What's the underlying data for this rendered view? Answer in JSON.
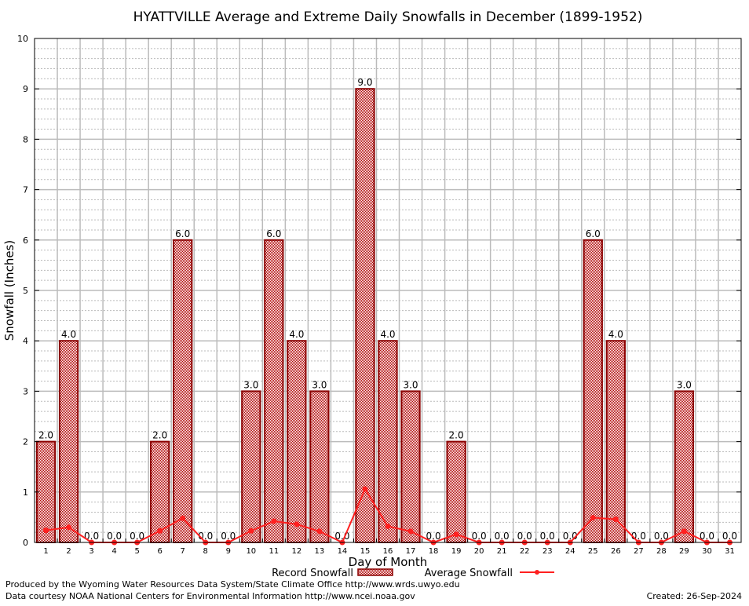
{
  "chart_data": {
    "type": "bar",
    "title": "HYATTVILLE Average and Extreme Daily Snowfalls in December (1899-1952)",
    "xlabel": "Day of Month",
    "ylabel": "Snowfall (Inches)",
    "ylim": [
      0,
      10
    ],
    "yticks": [
      "0",
      "1",
      "2",
      "3",
      "4",
      "5",
      "6",
      "7",
      "8",
      "9",
      "10"
    ],
    "grid": true,
    "legend_placement": "bottom",
    "categories": [
      "1",
      "2",
      "3",
      "4",
      "5",
      "6",
      "7",
      "8",
      "9",
      "10",
      "11",
      "12",
      "13",
      "14",
      "15",
      "16",
      "17",
      "18",
      "19",
      "20",
      "21",
      "22",
      "23",
      "24",
      "25",
      "26",
      "27",
      "28",
      "29",
      "30",
      "31"
    ],
    "series": [
      {
        "name": "Record Snowfall",
        "type": "bar",
        "color": "#cc0000",
        "values": [
          2,
          4,
          0,
          0,
          0,
          2,
          6,
          0,
          0,
          3,
          6,
          4,
          3,
          0,
          9,
          4,
          3,
          0,
          2,
          0,
          0,
          0,
          0,
          0,
          6,
          4,
          0,
          0,
          3,
          0,
          0
        ],
        "labels": [
          "2.0",
          "4.0",
          "0.0",
          "0.0",
          "0.0",
          "2.0",
          "6.0",
          "0.0",
          "0.0",
          "3.0",
          "6.0",
          "4.0",
          "3.0",
          "0.0",
          "9.0",
          "4.0",
          "3.0",
          "0.0",
          "2.0",
          "0.0",
          "0.0",
          "0.0",
          "0.0",
          "0.0",
          "6.0",
          "4.0",
          "0.0",
          "0.0",
          "3.0",
          "0.0",
          "0.0"
        ]
      },
      {
        "name": "Average Snowfall",
        "type": "line",
        "color": "#ff2020",
        "values": [
          0.24,
          0.3,
          0,
          0,
          0,
          0.23,
          0.48,
          0,
          0,
          0.23,
          0.42,
          0.36,
          0.22,
          0,
          1.06,
          0.32,
          0.22,
          0,
          0.16,
          0,
          0,
          0,
          0,
          0,
          0.49,
          0.46,
          0,
          0,
          0.22,
          0,
          0
        ]
      }
    ]
  },
  "footer": {
    "credit1": "Produced by the Wyoming Water Resources Data System/State Climate Office http://www.wrds.uwyo.edu",
    "credit2": "Data courtesy NOAA National Centers for Environmental Information http://www.ncei.noaa.gov",
    "created": "Created: 26-Sep-2024"
  }
}
